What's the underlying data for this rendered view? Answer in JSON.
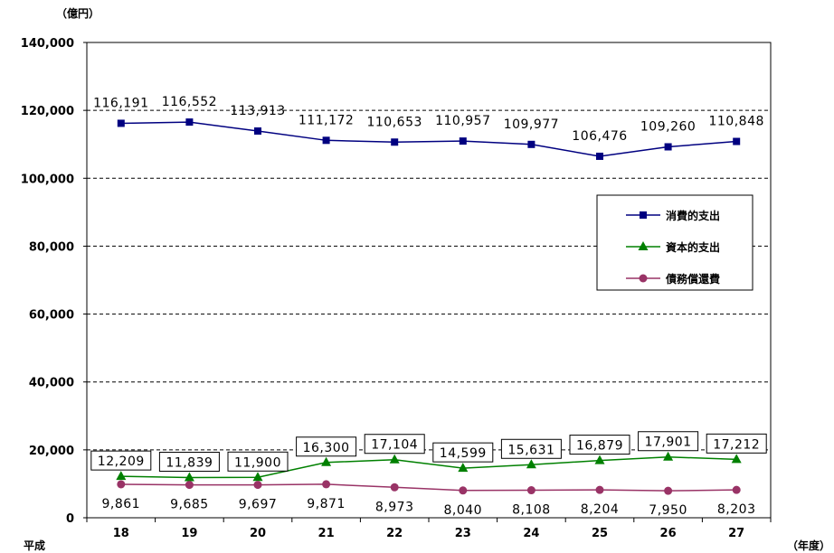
{
  "chart_data": {
    "type": "line",
    "title": "",
    "y_unit_label": "（億円）",
    "x_prefix_label": "平成",
    "x_unit_label": "（年度）",
    "ylim": [
      0,
      140000
    ],
    "y_ticks": [
      0,
      20000,
      40000,
      60000,
      80000,
      100000,
      120000,
      140000
    ],
    "y_tick_labels": [
      "0",
      "20,000",
      "40,000",
      "60,000",
      "80,000",
      "100,000",
      "120,000",
      "140,000"
    ],
    "grid": "horizontal-dashed",
    "legend_position": "right-upper",
    "categories": [
      "18",
      "19",
      "20",
      "21",
      "22",
      "23",
      "24",
      "25",
      "26",
      "27"
    ],
    "series": [
      {
        "name": "消費的支出",
        "color": "#000080",
        "marker": "square",
        "labels_boxed": false,
        "values": [
          116191,
          116552,
          113913,
          111172,
          110653,
          110957,
          109977,
          106476,
          109260,
          110848
        ],
        "labels": [
          "116,191",
          "116,552",
          "113,913",
          "111,172",
          "110,653",
          "110,957",
          "109,977",
          "106,476",
          "109,260",
          "110,848"
        ]
      },
      {
        "name": "資本的支出",
        "color": "#008000",
        "marker": "triangle",
        "labels_boxed": true,
        "values": [
          12209,
          11839,
          11900,
          16300,
          17104,
          14599,
          15631,
          16879,
          17901,
          17212
        ],
        "labels": [
          "12,209",
          "11,839",
          "11,900",
          "16,300",
          "17,104",
          "14,599",
          "15,631",
          "16,879",
          "17,901",
          "17,212"
        ]
      },
      {
        "name": "債務償還費",
        "color": "#993366",
        "marker": "circle",
        "labels_boxed": false,
        "values": [
          9861,
          9685,
          9697,
          9871,
          8973,
          8040,
          8108,
          8204,
          7950,
          8203
        ],
        "labels": [
          "9,861",
          "9,685",
          "9,697",
          "9,871",
          "8,973",
          "8,040",
          "8,108",
          "8,204",
          "7,950",
          "8,203"
        ]
      }
    ]
  }
}
